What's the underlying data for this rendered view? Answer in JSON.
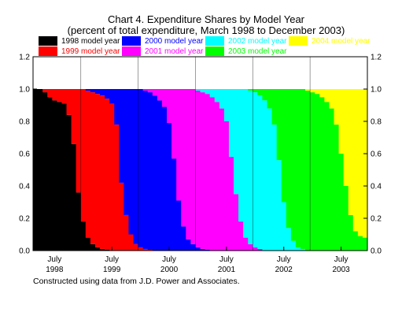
{
  "chart_data": {
    "type": "area",
    "title": "Chart 4. Expenditure Shares by Model Year",
    "subtitle": "(percent of total expenditure, March 1998 to December 2003)",
    "note": "Constructed using data from J.D. Power and Associates.",
    "ylim": [
      0,
      1.2
    ],
    "y_ticks": [
      "0.0",
      "0.2",
      "0.4",
      "0.6",
      "0.8",
      "1.0",
      "1.2"
    ],
    "x_ticks": [
      {
        "month": "July",
        "year": "1998"
      },
      {
        "month": "July",
        "year": "1999"
      },
      {
        "month": "July",
        "year": "2000"
      },
      {
        "month": "July",
        "year": "2001"
      },
      {
        "month": "July",
        "year": "2002"
      },
      {
        "month": "July",
        "year": "2003"
      }
    ],
    "legend_placement": "top",
    "series": [
      {
        "name": "1998 model year",
        "color": "#000000"
      },
      {
        "name": "1999 model year",
        "color": "#ff0000"
      },
      {
        "name": "2000 model year",
        "color": "#0000ff"
      },
      {
        "name": "2001 model year",
        "color": "#ff00ff"
      },
      {
        "name": "2002 model year",
        "color": "#00ffff"
      },
      {
        "name": "2003 model year",
        "color": "#00ff00"
      },
      {
        "name": "2004 model year",
        "color": "#ffff00"
      }
    ],
    "period": {
      "start": "1998-03",
      "end": "2003-12"
    },
    "cumulative_shares": {
      "1998_and_earlier": [
        1.0,
        1.0,
        0.98,
        0.95,
        0.93,
        0.92,
        0.91,
        0.84,
        0.66,
        0.36,
        0.18,
        0.08,
        0.04,
        0.02,
        0.01,
        0.005,
        0,
        0,
        0,
        0,
        0,
        0,
        0,
        0,
        0,
        0,
        0,
        0,
        0,
        0,
        0,
        0,
        0,
        0,
        0,
        0,
        0,
        0,
        0,
        0,
        0,
        0,
        0,
        0,
        0,
        0,
        0,
        0,
        0,
        0,
        0,
        0,
        0,
        0,
        0,
        0,
        0,
        0,
        0,
        0,
        0,
        0,
        0,
        0,
        0,
        0,
        0,
        0,
        0,
        0
      ],
      "1999_and_earlier": [
        1.0,
        1.0,
        1.0,
        1.0,
        1.0,
        1.0,
        1.0,
        1.0,
        1.0,
        1.0,
        1.0,
        0.99,
        0.98,
        0.97,
        0.96,
        0.94,
        0.91,
        0.78,
        0.42,
        0.22,
        0.1,
        0.04,
        0.02,
        0.01,
        0.005,
        0,
        0,
        0,
        0,
        0,
        0,
        0,
        0,
        0,
        0,
        0,
        0,
        0,
        0,
        0,
        0,
        0,
        0,
        0,
        0,
        0,
        0,
        0,
        0,
        0,
        0,
        0,
        0,
        0,
        0,
        0,
        0,
        0,
        0,
        0,
        0,
        0,
        0,
        0,
        0,
        0,
        0,
        0,
        0,
        0
      ],
      "2000_and_earlier": [
        1.0,
        1.0,
        1.0,
        1.0,
        1.0,
        1.0,
        1.0,
        1.0,
        1.0,
        1.0,
        1.0,
        1.0,
        1.0,
        1.0,
        1.0,
        1.0,
        1.0,
        1.0,
        1.0,
        1.0,
        1.0,
        1.0,
        1.0,
        0.99,
        0.98,
        0.96,
        0.93,
        0.89,
        0.79,
        0.57,
        0.31,
        0.15,
        0.07,
        0.04,
        0.02,
        0.01,
        0.005,
        0,
        0,
        0,
        0,
        0,
        0,
        0,
        0,
        0,
        0,
        0,
        0,
        0,
        0,
        0,
        0,
        0,
        0,
        0,
        0,
        0,
        0,
        0,
        0,
        0,
        0,
        0,
        0,
        0,
        0,
        0,
        0,
        0
      ],
      "2001_and_earlier": [
        1.0,
        1.0,
        1.0,
        1.0,
        1.0,
        1.0,
        1.0,
        1.0,
        1.0,
        1.0,
        1.0,
        1.0,
        1.0,
        1.0,
        1.0,
        1.0,
        1.0,
        1.0,
        1.0,
        1.0,
        1.0,
        1.0,
        1.0,
        1.0,
        1.0,
        1.0,
        1.0,
        1.0,
        1.0,
        1.0,
        1.0,
        1.0,
        1.0,
        1.0,
        0.99,
        0.98,
        0.97,
        0.95,
        0.92,
        0.88,
        0.8,
        0.58,
        0.35,
        0.18,
        0.08,
        0.04,
        0.02,
        0.01,
        0,
        0,
        0,
        0,
        0,
        0,
        0,
        0,
        0,
        0,
        0,
        0,
        0,
        0,
        0,
        0,
        0,
        0,
        0,
        0,
        0,
        0
      ],
      "2002_and_earlier": [
        1.0,
        1.0,
        1.0,
        1.0,
        1.0,
        1.0,
        1.0,
        1.0,
        1.0,
        1.0,
        1.0,
        1.0,
        1.0,
        1.0,
        1.0,
        1.0,
        1.0,
        1.0,
        1.0,
        1.0,
        1.0,
        1.0,
        1.0,
        1.0,
        1.0,
        1.0,
        1.0,
        1.0,
        1.0,
        1.0,
        1.0,
        1.0,
        1.0,
        1.0,
        1.0,
        1.0,
        1.0,
        1.0,
        1.0,
        1.0,
        1.0,
        1.0,
        1.0,
        1.0,
        1.0,
        0.99,
        0.98,
        0.96,
        0.93,
        0.88,
        0.78,
        0.56,
        0.3,
        0.14,
        0.06,
        0.02,
        0.01,
        0,
        0,
        0,
        0,
        0,
        0,
        0,
        0,
        0,
        0,
        0,
        0,
        0
      ],
      "2003_and_earlier": [
        1.0,
        1.0,
        1.0,
        1.0,
        1.0,
        1.0,
        1.0,
        1.0,
        1.0,
        1.0,
        1.0,
        1.0,
        1.0,
        1.0,
        1.0,
        1.0,
        1.0,
        1.0,
        1.0,
        1.0,
        1.0,
        1.0,
        1.0,
        1.0,
        1.0,
        1.0,
        1.0,
        1.0,
        1.0,
        1.0,
        1.0,
        1.0,
        1.0,
        1.0,
        1.0,
        1.0,
        1.0,
        1.0,
        1.0,
        1.0,
        1.0,
        1.0,
        1.0,
        1.0,
        1.0,
        1.0,
        1.0,
        1.0,
        1.0,
        1.0,
        1.0,
        1.0,
        1.0,
        1.0,
        1.0,
        1.0,
        1.0,
        0.99,
        0.98,
        0.97,
        0.95,
        0.92,
        0.88,
        0.78,
        0.6,
        0.4,
        0.22,
        0.12,
        0.09,
        0.08
      ]
    }
  }
}
